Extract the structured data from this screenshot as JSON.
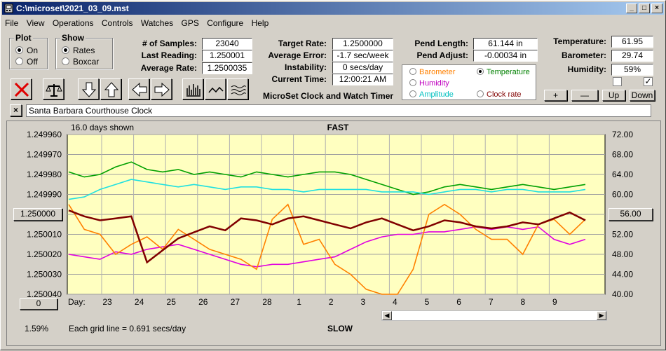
{
  "window": {
    "title": "C:\\microset\\2021_03_09.mst",
    "min": "_",
    "max": "□",
    "close": "×"
  },
  "menu": [
    "File",
    "View",
    "Operations",
    "Controls",
    "Watches",
    "GPS",
    "Configure",
    "Help"
  ],
  "plot_group": {
    "title": "Plot",
    "on": "On",
    "off": "Off",
    "selected": "On"
  },
  "show_group": {
    "title": "Show",
    "rates": "Rates",
    "boxcar": "Boxcar",
    "selected": "Rates"
  },
  "stats": {
    "samples_label": "# of Samples:",
    "samples": "23040",
    "last_label": "Last Reading:",
    "last": "1.250001",
    "avg_label": "Average Rate:",
    "avg": "1.2500035",
    "target_label": "Target Rate:",
    "target": "1.2500000",
    "err_label": "Average Error:",
    "err": "-1.7 sec/week",
    "inst_label": "Instability:",
    "inst": "0 secs/day",
    "time_label": "Current Time:",
    "time": "12:00:21 AM",
    "plen_label": "Pend Length:",
    "plen": "61.144 in",
    "padj_label": "Pend Adjust:",
    "padj": "-0.00034 in",
    "temp_label": "Temperature:",
    "temp": "61.95",
    "baro_label": "Barometer:",
    "baro": "29.74",
    "hum_label": "Humidity:",
    "hum": "59%"
  },
  "app_caption": "MicroSet Clock and Watch Timer",
  "options": {
    "barometer": "Barometer",
    "temperature": "Temperature",
    "humidity": "Humidity",
    "amplitude": "Amplitude",
    "clockrate": "Clock rate",
    "selected": "Temperature",
    "colors": {
      "barometer": "#ff8000",
      "temperature": "#008000",
      "humidity": "#c000c0",
      "amplitude": "#00c0c0",
      "clockrate": "#800000"
    }
  },
  "buttons": {
    "plus": "+",
    "minus": "—",
    "up": "Up",
    "down": "Down",
    "close_x": "×",
    "left_val": "1.250000",
    "right_val": "56.00",
    "zero": "0"
  },
  "clock_name": "Santa Barbara Courthouse Clock",
  "chart_data": {
    "type": "line",
    "title": "FAST",
    "bottom_title": "SLOW",
    "days_shown": "16.0 days shown",
    "grid_note": "Each grid line = 0.691 secs/day",
    "percent": "1.59%",
    "day_label": "Day:",
    "left_ticks": [
      "1.249960",
      "1.249970",
      "1.249980",
      "1.249990",
      "1.250000",
      "1.250010",
      "1.250020",
      "1.250030",
      "1.250040"
    ],
    "right_ticks": [
      "72.00",
      "68.00",
      "64.00",
      "60.00",
      "56.00",
      "52.00",
      "48.00",
      "44.00",
      "40.00"
    ],
    "days": [
      "23",
      "24",
      "25",
      "26",
      "27",
      "28",
      "1",
      "2",
      "3",
      "4",
      "5",
      "6",
      "7",
      "8",
      "9"
    ],
    "ylim_left": [
      1.24996,
      1.25004
    ],
    "ylim_right": [
      40,
      72
    ],
    "series": [
      {
        "name": "Temperature",
        "color": "#00a000",
        "values": [
          64.5,
          63.5,
          64,
          65.5,
          66.5,
          65,
          64.5,
          65,
          64,
          64.5,
          64,
          63.5,
          64.5,
          64,
          63.5,
          64,
          64.5,
          64.5,
          64,
          63,
          62,
          61,
          60,
          60.5,
          61.5,
          62,
          61.5,
          61,
          61.5,
          62,
          61.5,
          61,
          61.5,
          62
        ]
      },
      {
        "name": "Amplitude",
        "color": "#20e0e0",
        "values": [
          59,
          59.5,
          61,
          62,
          63,
          62.5,
          62,
          61.5,
          62,
          61.5,
          61,
          61.5,
          61.5,
          61,
          61,
          60.5,
          61,
          61,
          61,
          61,
          60.5,
          60.5,
          60.5,
          60,
          60.5,
          61,
          61,
          60.5,
          61,
          61,
          60.5,
          60.5,
          60.5,
          61
        ]
      },
      {
        "name": "Humidity",
        "color": "#e000e0",
        "values": [
          48,
          47.5,
          47,
          48.5,
          48,
          49,
          49.5,
          50,
          49,
          48,
          47,
          46,
          45.5,
          46,
          46,
          46.5,
          47,
          47.5,
          49,
          50.5,
          51.5,
          52,
          52,
          52.5,
          52.5,
          53,
          53.5,
          53,
          53.5,
          53,
          53.5,
          51,
          50,
          51
        ]
      },
      {
        "name": "Barometer",
        "color": "#ff8000",
        "values": [
          58,
          53,
          52,
          48,
          50,
          51.5,
          49,
          53,
          51,
          49,
          48,
          47,
          45,
          55,
          58,
          50,
          51,
          46,
          44,
          41,
          40,
          40,
          45,
          56,
          58,
          56,
          53,
          51,
          51,
          48,
          54,
          55,
          52,
          55
        ]
      },
      {
        "name": "Clock rate",
        "color": "#800000",
        "values": [
          1.249998,
          1.250001,
          1.250003,
          1.250002,
          1.250001,
          1.250024,
          1.250018,
          1.250012,
          1.250009,
          1.250006,
          1.250008,
          1.250002,
          1.250003,
          1.250005,
          1.250002,
          1.250001,
          1.250003,
          1.250005,
          1.250007,
          1.250004,
          1.250002,
          1.250005,
          1.250008,
          1.250006,
          1.250003,
          1.250004,
          1.250006,
          1.250007,
          1.250006,
          1.250004,
          1.250005,
          1.250002,
          1.249999,
          1.250003
        ]
      }
    ]
  }
}
